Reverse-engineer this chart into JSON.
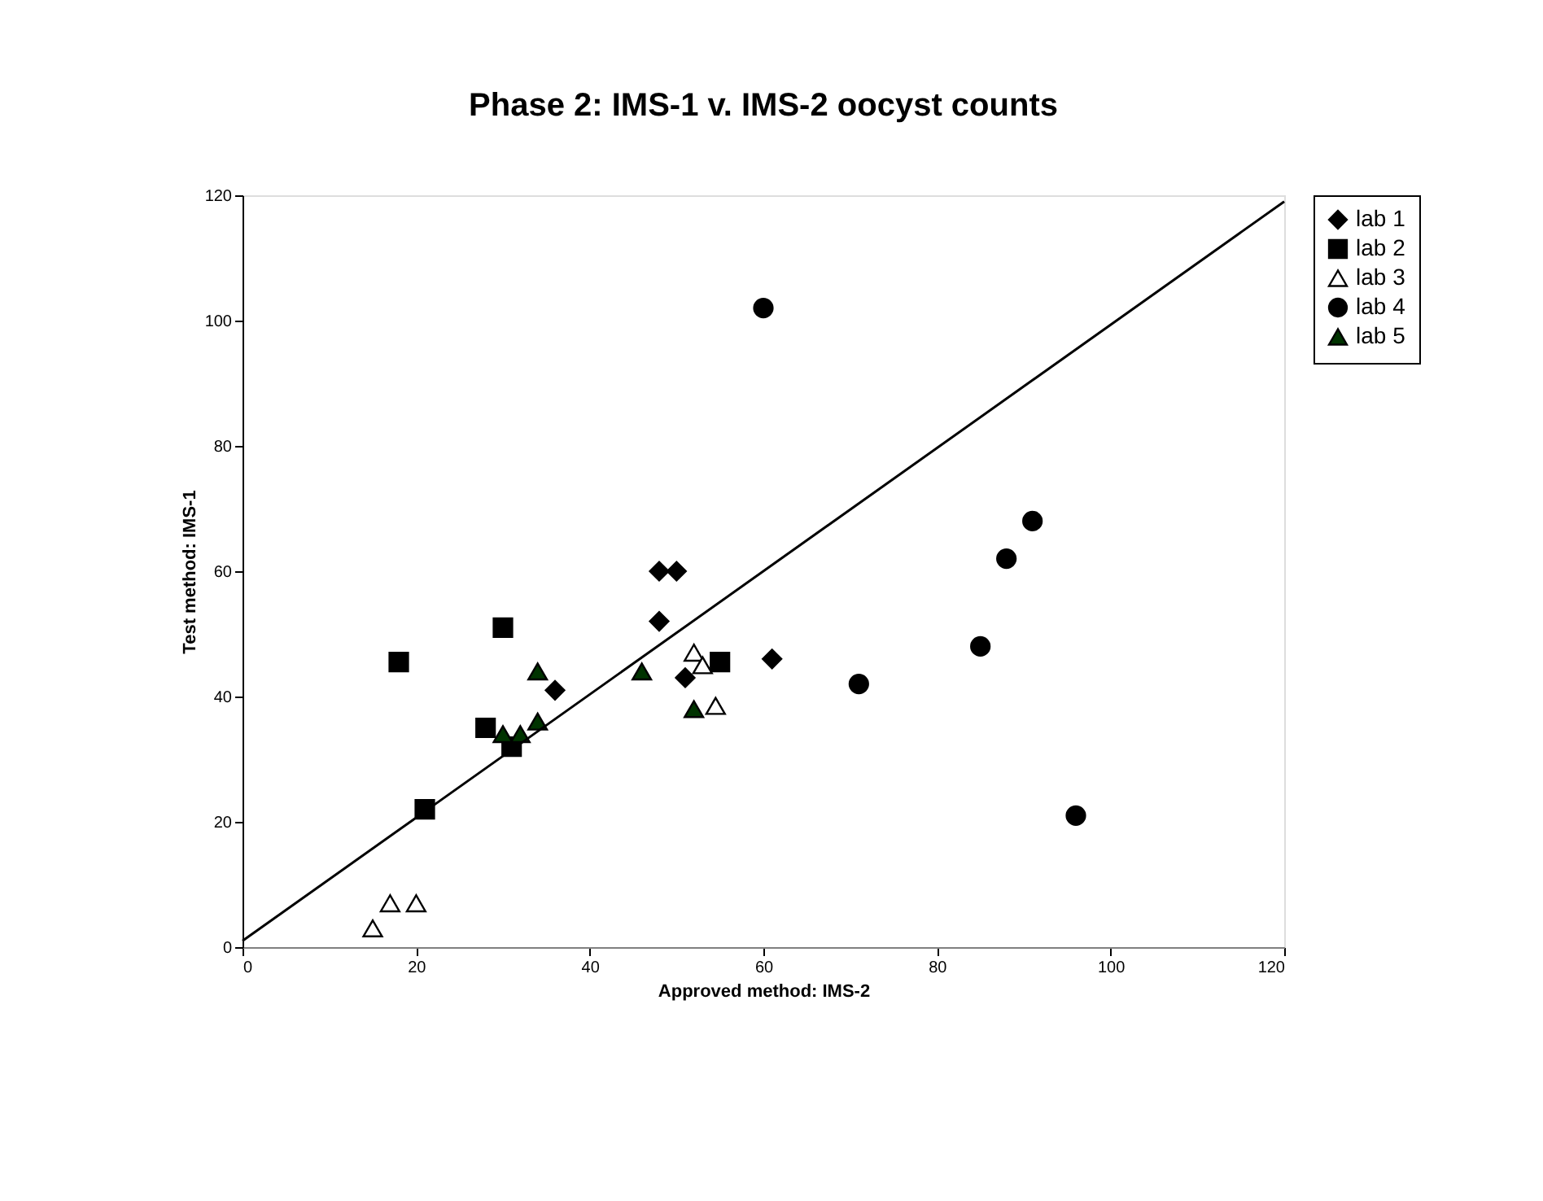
{
  "chart_data": {
    "type": "scatter",
    "title": "Phase 2: IMS-1 v. IMS-2 oocyst counts",
    "xlabel": "Approved method: IMS-2",
    "ylabel": "Test method: IMS-1",
    "xlim": [
      0,
      120
    ],
    "ylim": [
      0,
      120
    ],
    "xticks": [
      0,
      20,
      40,
      60,
      80,
      100,
      120
    ],
    "yticks": [
      0,
      20,
      40,
      60,
      80,
      100,
      120
    ],
    "grid": false,
    "legend": "right",
    "series": [
      {
        "name": "lab 1",
        "color": "#000000",
        "marker": "diamond",
        "x": [
          48,
          50,
          48,
          36,
          51,
          61
        ],
        "values": [
          60,
          60,
          52,
          41,
          43,
          46
        ]
      },
      {
        "name": "lab 2",
        "color": "#000000",
        "marker": "square",
        "x": [
          18,
          30,
          28,
          31,
          21,
          55
        ],
        "values": [
          45.5,
          51,
          35,
          32,
          22,
          45.5
        ]
      },
      {
        "name": "lab 3",
        "color": "#ffffff",
        "marker": "triangle",
        "x": [
          15,
          17,
          20,
          52,
          53,
          54.5
        ],
        "values": [
          3,
          7,
          7,
          47,
          45,
          38.5
        ]
      },
      {
        "name": "lab 4",
        "color": "#000000",
        "marker": "circle",
        "x": [
          60,
          71,
          85,
          88,
          91,
          96
        ],
        "values": [
          102,
          42,
          48,
          62,
          68,
          21
        ]
      },
      {
        "name": "lab 5",
        "color": "#003300",
        "marker": "triangle",
        "x": [
          30,
          32,
          34,
          34,
          46,
          52
        ],
        "values": [
          34,
          34,
          36,
          44,
          44,
          38
        ]
      },
      {
        "type": "line",
        "color": "#000000",
        "marker": "none",
        "x": [
          0,
          120
        ],
        "values": [
          1,
          119
        ]
      }
    ]
  }
}
